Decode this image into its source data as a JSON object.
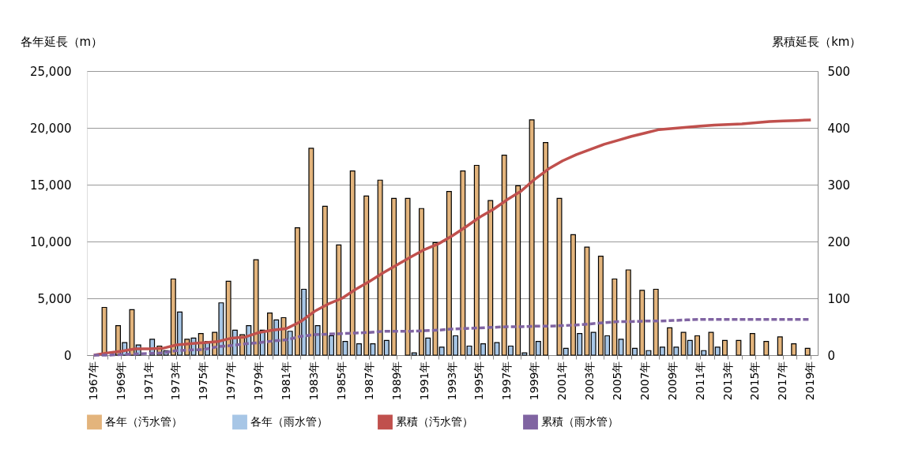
{
  "chart_data": {
    "type": "bar",
    "ylabel": "各年延長（m）",
    "y2label": "累積延長（km）",
    "categories": [
      "1967年",
      null,
      "1969年",
      null,
      "1971年",
      null,
      "1973年",
      null,
      "1975年",
      null,
      "1977年",
      null,
      "1979年",
      null,
      "1981年",
      null,
      "1983年",
      null,
      "1985年",
      null,
      "1987年",
      null,
      "1989年",
      null,
      "1991年",
      null,
      "1993年",
      null,
      "1995年",
      null,
      "1997年",
      null,
      "1999年",
      null,
      "2001年",
      null,
      "2003年",
      null,
      "2005年",
      null,
      "2007年",
      null,
      "2009年",
      null,
      "2011年",
      null,
      "2013年",
      null,
      "2015年",
      null,
      "2017年",
      null,
      "2019年"
    ],
    "series": [
      {
        "name": "各年（汚水管）",
        "type": "bar",
        "color": "#e3b47c",
        "values": [
          0,
          4200,
          2600,
          4000,
          0,
          800,
          6700,
          1400,
          1900,
          2000,
          6500,
          1800,
          8400,
          3700,
          3300,
          11200,
          18200,
          13100,
          9700,
          16200,
          14000,
          15400,
          13800,
          13800,
          12900,
          9900,
          14400,
          16200,
          16700,
          13600,
          17600,
          14900,
          20700,
          18700,
          13800,
          10600,
          9500,
          8700,
          6700,
          7500,
          5700,
          5800,
          2400,
          2000,
          1700,
          2000,
          1300,
          1300,
          1900,
          1200,
          1600,
          1000,
          600
        ]
      },
      {
        "name": "各年（雨水管）",
        "type": "bar",
        "color": "#a7c6e6",
        "values": [
          0,
          0,
          1100,
          900,
          1400,
          400,
          3800,
          1500,
          1200,
          4600,
          2200,
          2600,
          2200,
          3100,
          2100,
          5800,
          2600,
          1700,
          1200,
          1000,
          1000,
          1300,
          0,
          200,
          1500,
          700,
          1700,
          800,
          1000,
          1100,
          800,
          200,
          1200,
          0,
          600,
          1900,
          2000,
          1700,
          1400,
          600,
          400,
          700,
          700,
          1300,
          400,
          700,
          0,
          0,
          0,
          0,
          0,
          0,
          0
        ]
      },
      {
        "name": "累積（汚水管）",
        "type": "line",
        "axis": "y2",
        "color": "#c0504d",
        "line_style": "solid",
        "values": [
          0,
          4,
          7,
          11,
          11,
          12,
          18,
          20,
          22,
          24,
          30,
          32,
          40,
          44,
          47,
          59,
          77,
          90,
          100,
          116,
          130,
          145,
          159,
          173,
          186,
          196,
          210,
          226,
          243,
          257,
          274,
          289,
          310,
          328,
          342,
          353,
          362,
          371,
          378,
          385,
          391,
          397,
          399,
          401,
          403,
          405,
          406,
          407,
          409,
          411,
          412,
          413,
          414
        ]
      },
      {
        "name": "累積（雨水管）",
        "type": "line",
        "axis": "y2",
        "color": "#8064a2",
        "line_style": "dashed",
        "values": [
          0,
          0,
          1,
          2,
          3,
          4,
          8,
          9,
          10,
          15,
          17,
          20,
          22,
          25,
          27,
          33,
          36,
          37,
          38,
          39,
          40,
          42,
          42,
          42,
          43,
          44,
          46,
          47,
          48,
          49,
          50,
          50,
          51,
          51,
          52,
          53,
          55,
          57,
          59,
          59,
          60,
          60,
          61,
          62,
          63,
          63,
          63,
          63,
          63,
          63,
          63,
          63,
          63
        ]
      }
    ],
    "ylim": [
      0,
      25000
    ],
    "yticks": [
      {
        "value": 0,
        "label": "0"
      },
      {
        "value": 5000,
        "label": "5,000"
      },
      {
        "value": 10000,
        "label": "10,000"
      },
      {
        "value": 15000,
        "label": "15,000"
      },
      {
        "value": 20000,
        "label": "20,000"
      },
      {
        "value": 25000,
        "label": "25,000"
      }
    ],
    "y2lim": [
      0,
      500
    ],
    "y2ticks": [
      0,
      100,
      200,
      300,
      400,
      500
    ],
    "grid": "y",
    "legend": "bottom",
    "marker": "none"
  }
}
